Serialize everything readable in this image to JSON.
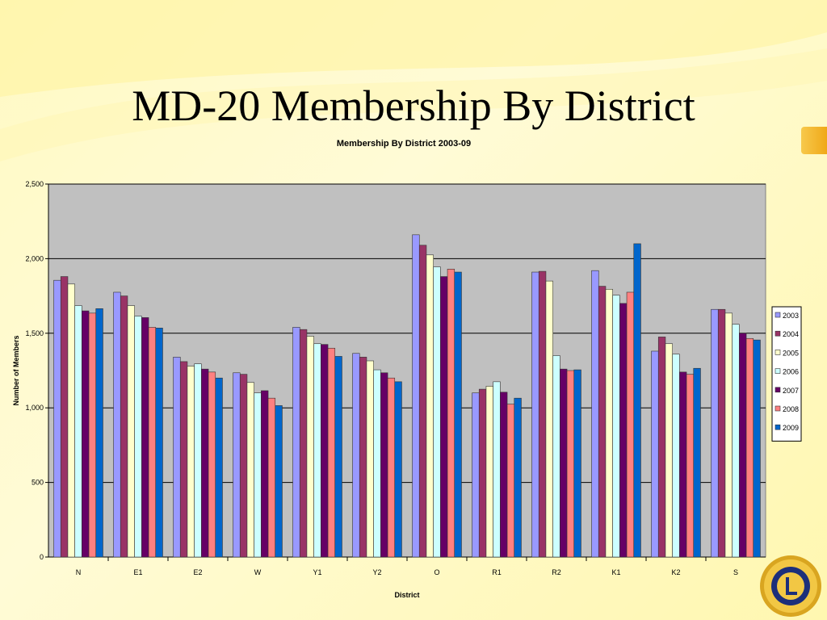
{
  "slide": {
    "title": "MD-20 Membership By District"
  },
  "colors": {
    "plot_bg": "#c0c0c0",
    "series": [
      "#9999ff",
      "#993366",
      "#ffffcc",
      "#ccffff",
      "#660066",
      "#ff8080",
      "#0066cc"
    ]
  },
  "chart_data": {
    "type": "bar",
    "title": "Membership By District 2003-09",
    "xlabel": "District",
    "ylabel": "Number of Members",
    "ylim": [
      0,
      2500
    ],
    "yticks": [
      0,
      500,
      1000,
      1500,
      2000,
      2500
    ],
    "ytick_labels": [
      "0",
      "500",
      "1,000",
      "1,500",
      "2,000",
      "2,500"
    ],
    "grid": true,
    "legend_position": "right",
    "categories": [
      "N",
      "E1",
      "E2",
      "W",
      "Y1",
      "Y2",
      "O",
      "R1",
      "R2",
      "K1",
      "K2",
      "S"
    ],
    "series": [
      {
        "name": "2003",
        "values": [
          1855,
          1775,
          1340,
          1235,
          1540,
          1365,
          2160,
          1100,
          1910,
          1920,
          1380,
          1660
        ]
      },
      {
        "name": "2004",
        "values": [
          1880,
          1750,
          1310,
          1225,
          1525,
          1340,
          2090,
          1125,
          1915,
          1815,
          1475,
          1660
        ]
      },
      {
        "name": "2005",
        "values": [
          1830,
          1685,
          1280,
          1170,
          1480,
          1315,
          2025,
          1145,
          1850,
          1795,
          1430,
          1635
        ]
      },
      {
        "name": "2006",
        "values": [
          1685,
          1615,
          1295,
          1100,
          1430,
          1255,
          1945,
          1175,
          1350,
          1755,
          1360,
          1560
        ]
      },
      {
        "name": "2007",
        "values": [
          1650,
          1605,
          1260,
          1115,
          1425,
          1235,
          1880,
          1105,
          1260,
          1700,
          1240,
          1500
        ]
      },
      {
        "name": "2008",
        "values": [
          1635,
          1540,
          1240,
          1065,
          1400,
          1200,
          1930,
          1025,
          1250,
          1775,
          1225,
          1465
        ]
      },
      {
        "name": "2009",
        "values": [
          1665,
          1535,
          1200,
          1015,
          1345,
          1175,
          1910,
          1065,
          1255,
          2100,
          1265,
          1455
        ]
      }
    ]
  }
}
